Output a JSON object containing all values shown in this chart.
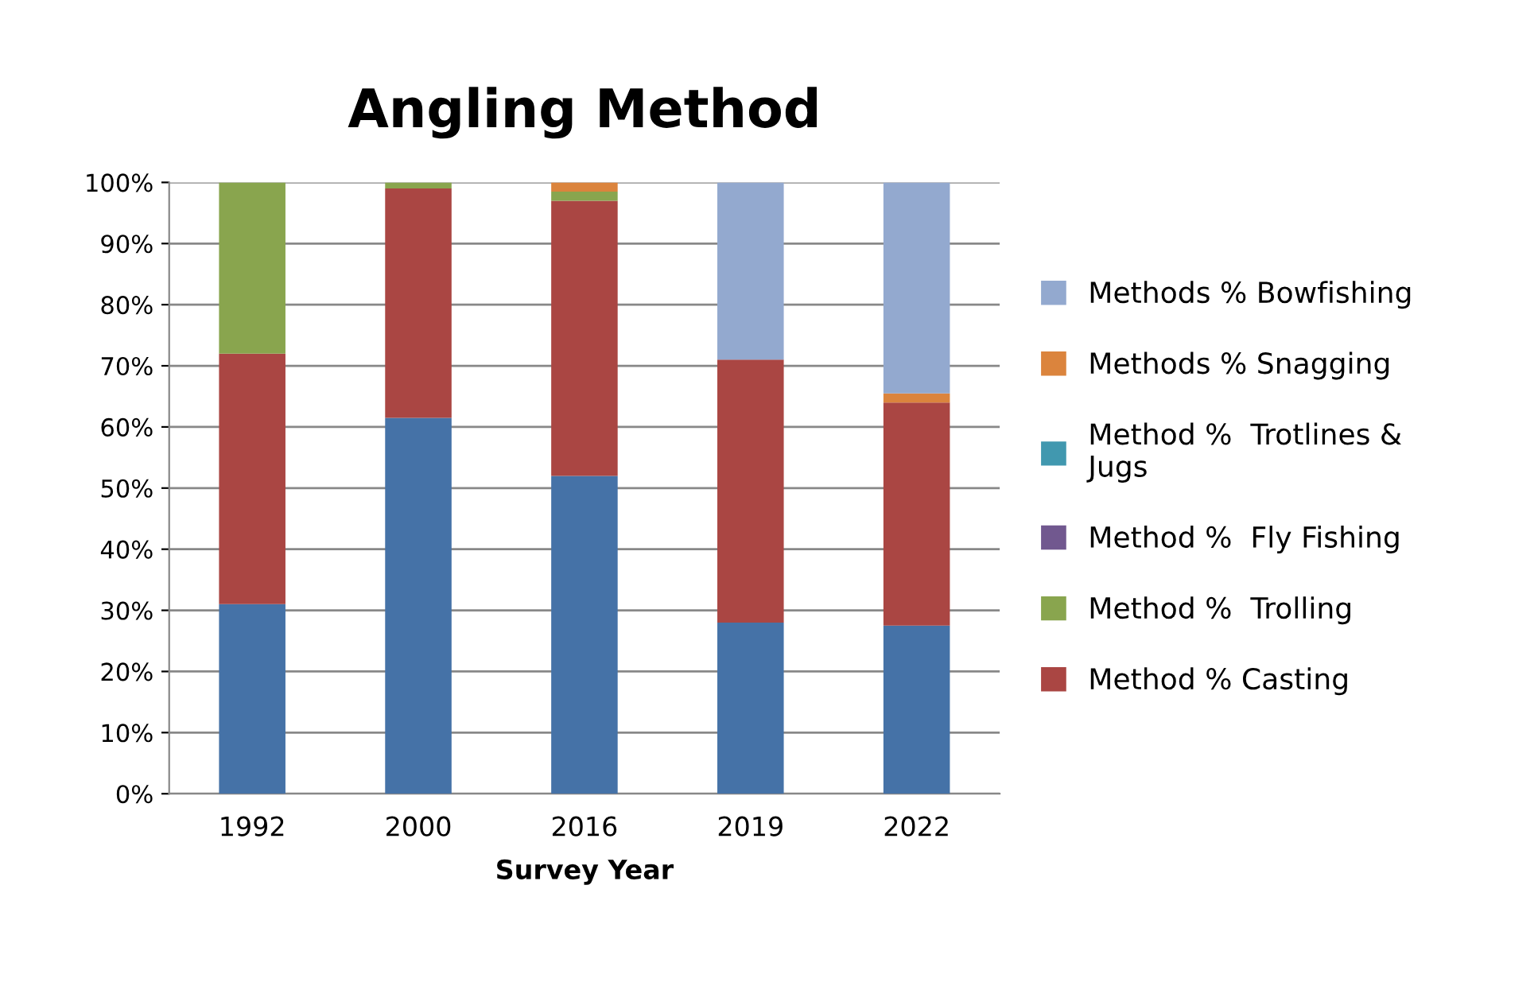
{
  "chart_data": {
    "type": "bar",
    "title": "Angling Method",
    "xlabel": "Survey Year",
    "stacked": true,
    "categories": [
      "1992",
      "2000",
      "2016",
      "2019",
      "2022"
    ],
    "series": [
      {
        "color": "#4572a7",
        "values": [
          31,
          61.5,
          52,
          28,
          27.5
        ]
      },
      {
        "name": "Method % Casting",
        "color": "#aa4643",
        "values": [
          41,
          37.5,
          45,
          43,
          36.5
        ]
      },
      {
        "name": "Method %  Trolling",
        "color": "#89a54e",
        "values": [
          28,
          1,
          1.5,
          0,
          0
        ]
      },
      {
        "name": "Method %  Fly Fishing",
        "color": "#71588f",
        "values": [
          0,
          0,
          0,
          0,
          0
        ]
      },
      {
        "name": "Method %  Trotlines & Jugs",
        "color": "#4198af",
        "values": [
          0,
          0,
          0,
          0,
          0
        ]
      },
      {
        "name": "Methods % Snagging",
        "color": "#db843d",
        "values": [
          0,
          0,
          1.5,
          0,
          1.5
        ]
      },
      {
        "name": "Methods % Bowfishing",
        "color": "#93a9cf",
        "values": [
          0,
          0,
          0,
          29,
          34.5
        ]
      }
    ],
    "ylim": [
      0,
      100
    ],
    "yticks": [
      {
        "value": 0,
        "label": "0%"
      },
      {
        "value": 10,
        "label": "10%"
      },
      {
        "value": 20,
        "label": "20%"
      },
      {
        "value": 30,
        "label": "30%"
      },
      {
        "value": 40,
        "label": "40%"
      },
      {
        "value": 50,
        "label": "50%"
      },
      {
        "value": 60,
        "label": "60%"
      },
      {
        "value": 70,
        "label": "70%"
      },
      {
        "value": 80,
        "label": "80%"
      },
      {
        "value": 90,
        "label": "90%"
      },
      {
        "value": 100,
        "label": "100%"
      }
    ],
    "grid": "y",
    "legend": "right"
  }
}
